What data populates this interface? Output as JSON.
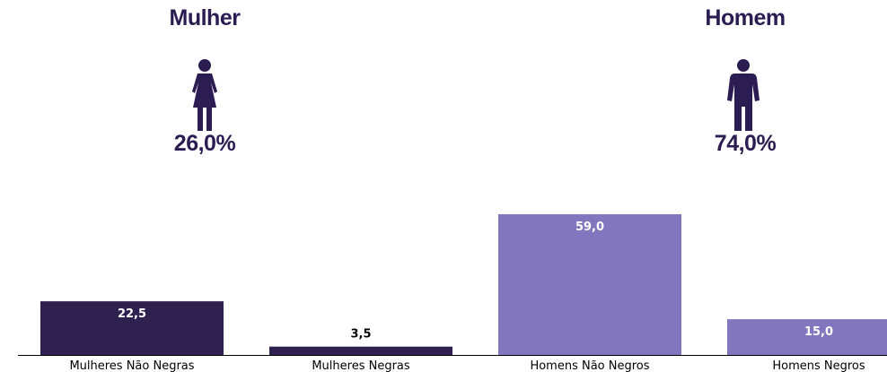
{
  "colors": {
    "dark": "#2e2150",
    "light": "#8277bf",
    "title": "#2b1d52",
    "axis": "#000000"
  },
  "groups": [
    {
      "title": "Mulher",
      "percent": "26,0%",
      "icon": "woman-icon"
    },
    {
      "title": "Homem",
      "percent": "74,0%",
      "icon": "man-icon"
    }
  ],
  "chart_data": {
    "type": "bar",
    "categories": [
      "Mulheres Não Negras",
      "Mulheres Negras",
      "Homens Não Negros",
      "Homens Negros"
    ],
    "values": [
      22.5,
      3.5,
      59.0,
      15.0
    ],
    "value_labels": [
      "22,5",
      "3,5",
      "59,0",
      "15,0"
    ],
    "bar_colors": [
      "#2e2150",
      "#2e2150",
      "#8277bf",
      "#8277bf"
    ],
    "ylim": [
      0,
      62
    ],
    "grid": false,
    "legend": "none"
  }
}
